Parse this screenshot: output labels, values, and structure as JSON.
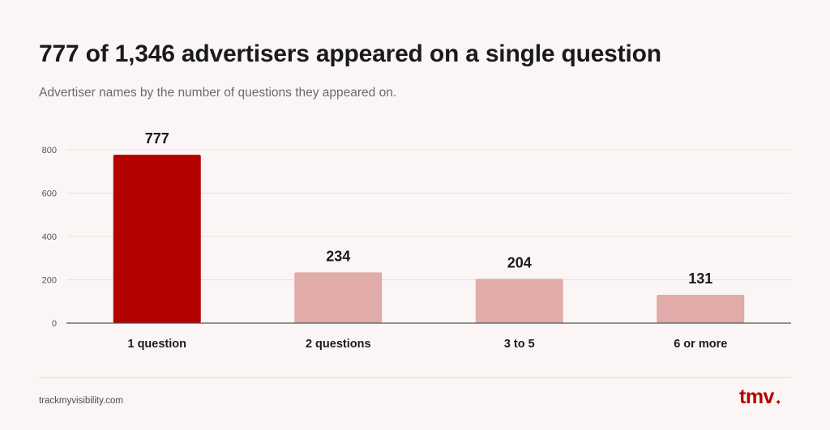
{
  "header": {
    "title": "777 of 1,346 advertisers appeared on a single question",
    "subtitle": "Advertiser names by the number of questions they appeared on."
  },
  "footer": {
    "source": "trackmyvisibility.com",
    "logo_text": "tmv",
    "logo_mark": "✦"
  },
  "colors": {
    "highlight": "#b50000",
    "bar": "#e0aba8",
    "grid": "#e8e0de",
    "axis": "#555555"
  },
  "chart_data": {
    "type": "bar",
    "categories": [
      "1 question",
      "2 questions",
      "3 to 5",
      "6 or more"
    ],
    "values": [
      777,
      234,
      204,
      131
    ],
    "highlight_index": 0,
    "ylim": [
      0,
      800
    ],
    "yticks": [
      0,
      200,
      400,
      600,
      800
    ],
    "grid": true,
    "data_labels": true
  }
}
